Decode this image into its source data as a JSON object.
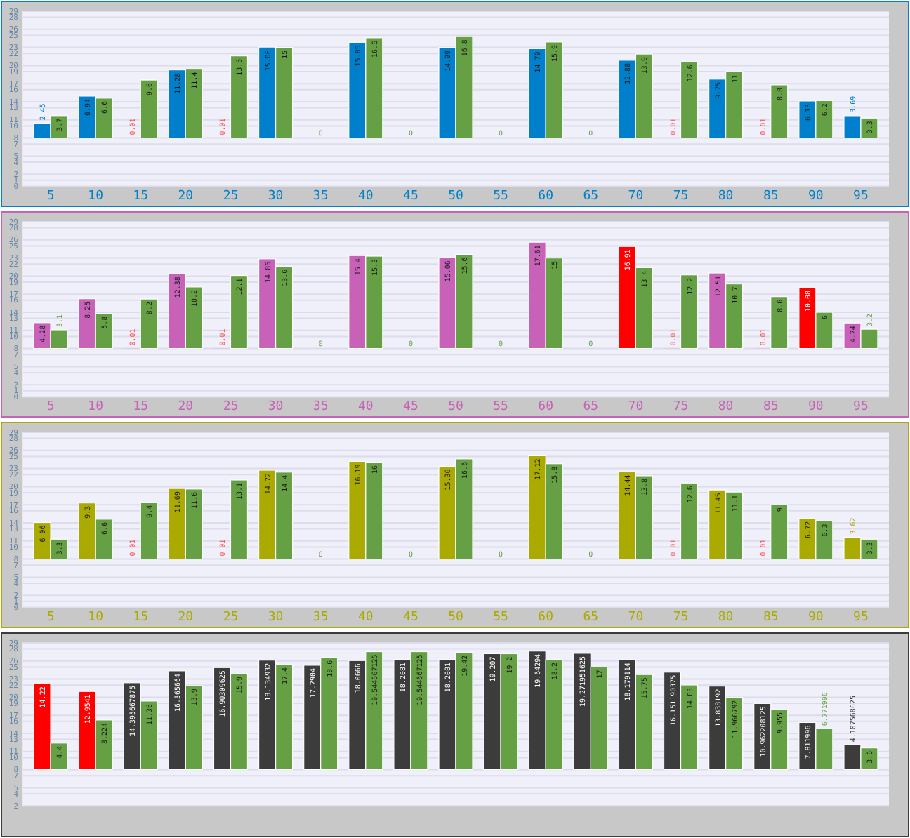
{
  "chart_data": [
    {
      "type": "bar",
      "categories": [
        "5",
        "10",
        "15",
        "20",
        "25",
        "30",
        "35",
        "40",
        "45",
        "50",
        "55",
        "60",
        "65",
        "70",
        "75",
        "80",
        "85",
        "90",
        "95"
      ],
      "ylim": [
        0,
        29
      ],
      "yticks": [
        0,
        1,
        2,
        4,
        5,
        7,
        8,
        10,
        11,
        13,
        14,
        16,
        17,
        19,
        20,
        22,
        23,
        25,
        26,
        28,
        29
      ],
      "grid": "y",
      "annotations": [
        "0",
        "0",
        "0",
        "0"
      ],
      "series": [
        {
          "color": "#0080cc",
          "colors": [
            "#0080cc",
            "#0080cc",
            "#ff5050",
            "#0080cc",
            "#ff5050",
            "#0080cc",
            null,
            "#0080cc",
            null,
            "#0080cc",
            null,
            "#0080cc",
            null,
            "#0080cc",
            "#ff5050",
            "#0080cc",
            "#ff5050",
            "#0080cc",
            "#0080cc"
          ],
          "base": [
            8,
            8,
            8,
            8,
            8,
            8,
            null,
            8,
            null,
            8,
            null,
            8,
            null,
            8,
            8,
            8,
            8,
            8,
            8
          ],
          "values": [
            2.45,
            6.94,
            0.01,
            11.28,
            0.01,
            15.06,
            null,
            15.85,
            null,
            14.99,
            null,
            14.79,
            null,
            12.88,
            0.01,
            9.75,
            0.01,
            6.13,
            3.69
          ],
          "value_labels": [
            "2.45",
            "6.94",
            "0.01",
            "11.28",
            "0.01",
            "15.06",
            null,
            "15.85",
            null,
            "14.99",
            null,
            "14.79",
            null,
            "12.88",
            "0.01",
            "9.75",
            "0.01",
            "6.13",
            "3.69"
          ]
        },
        {
          "color": "#66a044",
          "base": [
            8,
            8,
            8,
            8,
            8,
            8,
            null,
            8,
            null,
            8,
            null,
            8,
            null,
            8,
            8,
            8,
            8,
            8,
            8
          ],
          "values": [
            3.7,
            6.6,
            9.6,
            11.4,
            13.6,
            15,
            null,
            16.6,
            null,
            16.8,
            null,
            15.9,
            null,
            13.9,
            12.6,
            11,
            8.8,
            6.2,
            3.3
          ],
          "value_labels": [
            "3.7",
            "6.6",
            "9.6",
            "11.4",
            "13.6",
            "15",
            null,
            "16.6",
            null,
            "16.8",
            null,
            "15.9",
            null,
            "13.9",
            "12.6",
            "11",
            "8.8",
            "6.2",
            "3.3"
          ]
        }
      ]
    },
    {
      "type": "bar",
      "categories": [
        "5",
        "10",
        "15",
        "20",
        "25",
        "30",
        "35",
        "40",
        "45",
        "50",
        "55",
        "60",
        "65",
        "70",
        "75",
        "80",
        "85",
        "90",
        "95"
      ],
      "ylim": [
        0,
        29
      ],
      "yticks": [
        0,
        1,
        2,
        4,
        5,
        7,
        8,
        10,
        11,
        13,
        14,
        16,
        17,
        19,
        20,
        22,
        23,
        25,
        26,
        28,
        29
      ],
      "grid": "y",
      "annotations": [
        "0",
        "0",
        "0",
        "0"
      ],
      "series": [
        {
          "color": "#c862b8",
          "colors": [
            "#c862b8",
            "#c862b8",
            "#ff5050",
            "#c862b8",
            "#ff5050",
            "#c862b8",
            null,
            "#c862b8",
            null,
            "#c862b8",
            null,
            "#c862b8",
            null,
            "#ff0000",
            "#ff5050",
            "#c862b8",
            "#ff5050",
            "#ff0000",
            "#c862b8"
          ],
          "base": [
            8,
            8,
            8,
            8,
            8,
            8,
            null,
            8,
            null,
            8,
            null,
            8,
            null,
            8,
            8,
            8,
            8,
            8,
            8
          ],
          "values": [
            4.28,
            8.25,
            0.01,
            12.38,
            0.01,
            14.86,
            null,
            15.4,
            null,
            15.06,
            null,
            17.61,
            null,
            16.91,
            0.01,
            12.51,
            0.01,
            10.08,
            4.24
          ],
          "value_labels": [
            "4.28",
            "8.25",
            "0.01",
            "12.38",
            "0.01",
            "14.86",
            null,
            "15.4",
            null,
            "15.06",
            null,
            "17.61",
            null,
            "16.91",
            "0.01",
            "12.51",
            "0.01",
            "10.08",
            "4.24"
          ]
        },
        {
          "color": "#66a044",
          "base": [
            8,
            8,
            8,
            8,
            8,
            8,
            null,
            8,
            null,
            8,
            null,
            8,
            null,
            8,
            8,
            8,
            8,
            8,
            8
          ],
          "values": [
            3.1,
            5.8,
            8.2,
            10.2,
            12.1,
            13.6,
            null,
            15.3,
            null,
            15.6,
            null,
            15,
            null,
            13.4,
            12.2,
            10.7,
            8.6,
            6,
            3.2
          ],
          "value_labels": [
            "3.1",
            "5.8",
            "8.2",
            "10.2",
            "12.1",
            "13.6",
            null,
            "15.3",
            null,
            "15.6",
            null,
            "15",
            null,
            "13.4",
            "12.2",
            "10.7",
            "8.6",
            "6",
            "3.2"
          ]
        }
      ]
    },
    {
      "type": "bar",
      "categories": [
        "5",
        "10",
        "15",
        "20",
        "25",
        "30",
        "35",
        "40",
        "45",
        "50",
        "55",
        "60",
        "65",
        "70",
        "75",
        "80",
        "85",
        "90",
        "95"
      ],
      "ylim": [
        0,
        29
      ],
      "yticks": [
        0,
        1,
        2,
        4,
        5,
        7,
        8,
        10,
        11,
        13,
        14,
        16,
        17,
        19,
        20,
        22,
        23,
        25,
        26,
        28,
        29
      ],
      "grid": "y",
      "annotations": [
        "0",
        "0",
        "0",
        "0"
      ],
      "series": [
        {
          "color": "#aaaa00",
          "colors": [
            "#aaaa00",
            "#aaaa00",
            "#ff5050",
            "#aaaa00",
            "#ff5050",
            "#aaaa00",
            null,
            "#aaaa00",
            null,
            "#aaaa00",
            null,
            "#aaaa00",
            null,
            "#aaaa00",
            "#ff5050",
            "#aaaa00",
            "#ff5050",
            "#aaaa00",
            "#aaaa00"
          ],
          "base": [
            8,
            8,
            8,
            8,
            8,
            8,
            null,
            8,
            null,
            8,
            null,
            8,
            null,
            8,
            8,
            8,
            8,
            8,
            8
          ],
          "values": [
            6.06,
            9.3,
            0.01,
            11.69,
            0.01,
            14.72,
            null,
            16.19,
            null,
            15.36,
            null,
            17.12,
            null,
            14.44,
            0.01,
            11.45,
            0.01,
            6.72,
            3.62
          ],
          "value_labels": [
            "6.06",
            "9.3",
            "0.01",
            "11.69",
            "0.01",
            "14.72",
            null,
            "16.19",
            null,
            "15.36",
            null,
            "17.12",
            null,
            "14.44",
            "0.01",
            "11.45",
            "0.01",
            "6.72",
            "3.62"
          ]
        },
        {
          "color": "#66a044",
          "base": [
            8,
            8,
            8,
            8,
            8,
            8,
            null,
            8,
            null,
            8,
            null,
            8,
            null,
            8,
            8,
            8,
            8,
            8,
            8
          ],
          "values": [
            3.3,
            6.6,
            9.4,
            11.6,
            13.1,
            14.4,
            null,
            16,
            null,
            16.6,
            null,
            15.8,
            null,
            13.8,
            12.6,
            11.1,
            9,
            6.3,
            3.3
          ],
          "value_labels": [
            "3.3",
            "6.6",
            "9.4",
            "11.6",
            "13.1",
            "14.4",
            null,
            "16",
            null,
            "16.6",
            null,
            "15.8",
            null,
            "13.8",
            "12.6",
            "11.1",
            "9",
            "6.3",
            "3.3"
          ]
        }
      ]
    },
    {
      "type": "bar",
      "categories": [
        null,
        null,
        null,
        null,
        null,
        null,
        null,
        null,
        null,
        null,
        null,
        null,
        null,
        null,
        null,
        null,
        null,
        null,
        null
      ],
      "ylim": [
        2,
        29
      ],
      "tick_labels": "y",
      "yticks": [
        2,
        4,
        5,
        7,
        8,
        10,
        11,
        13,
        14,
        16,
        17,
        19,
        20,
        22,
        23,
        25,
        26,
        28,
        29
      ],
      "grid": "y",
      "series": [
        {
          "color": "#3c3c3c",
          "colors": [
            "#ff0000",
            "#ff0000",
            "#3c3c3c",
            "#3c3c3c",
            "#3c3c3c",
            "#3c3c3c",
            "#3c3c3c",
            "#3c3c3c",
            "#3c3c3c",
            "#3c3c3c",
            "#3c3c3c",
            "#3c3c3c",
            "#3c3c3c",
            "#3c3c3c",
            "#3c3c3c",
            "#3c3c3c",
            "#3c3c3c",
            "#3c3c3c",
            "#3c3c3c"
          ],
          "base": [
            8,
            8,
            8,
            8,
            8,
            8,
            8,
            8,
            8,
            8,
            8,
            8,
            8,
            8,
            8,
            8,
            8,
            8,
            8
          ],
          "values": [
            14.22,
            12.9541,
            14.395667875,
            16.365664,
            16.90309625,
            18.134932,
            17.2904,
            18.0666,
            18.2081,
            18.2081,
            19.207,
            19.64294,
            19.271951625,
            18.179114,
            16.151190375,
            13.838192,
            10.962208125,
            7.811996,
            4.107568625
          ],
          "value_labels": [
            "14.22",
            "12.9541",
            "14.395667875",
            "16.365664",
            "16.90309625",
            "18.134932",
            "17.2904",
            "18.0666",
            "18.2081",
            "18.2081",
            "19.207",
            "19.64294",
            "19.271951625",
            "18.179114",
            "16.151190375",
            "13.838192",
            "10.962208125",
            "7.811996",
            "4.107568625"
          ]
        },
        {
          "color": "#66a044",
          "base": [
            8,
            8,
            8,
            8,
            8,
            8,
            8,
            8,
            8,
            8,
            8,
            8,
            8,
            8,
            8,
            8,
            8,
            8,
            8
          ],
          "values": [
            4.4,
            8.224,
            11.36,
            13.9,
            15.9,
            17.4,
            18.6,
            19.544667125,
            19.544667125,
            19.42,
            19.2,
            18.2,
            17,
            15.75,
            14.03,
            11.966792,
            9.955,
            6.771996,
            3.6
          ],
          "value_labels": [
            "4.4",
            "8.224",
            "11.36",
            "13.9",
            "15.9",
            "17.4",
            "18.6",
            "19.544667125",
            "19.544667125",
            "19.42",
            "19.2",
            "18.2",
            "17",
            "15.75",
            "14.03",
            "11.966792",
            "9.955",
            "6.771996",
            "3.6"
          ]
        }
      ]
    }
  ]
}
